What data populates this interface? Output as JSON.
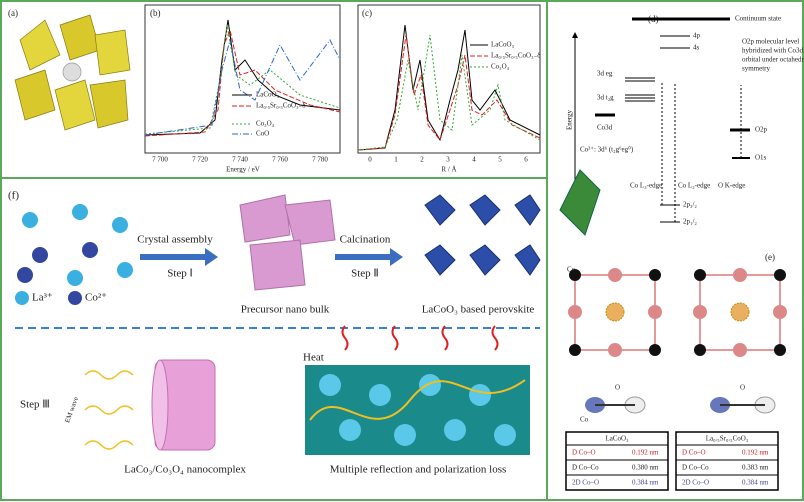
{
  "panel_a": {
    "label": "(a)"
  },
  "panel_b": {
    "label": "(b)",
    "legend": [
      "LaCoO₃",
      "La₀.₅Sr₀.₅CoO₃₋δ",
      "Co₃O₄",
      "CoO"
    ],
    "xticks": [
      "7 700",
      "7 720",
      "7 740",
      "7 760",
      "7 780"
    ],
    "xlabel": "Energy / eV"
  },
  "panel_c": {
    "label": "(c)",
    "legend": [
      "LaCoO₃",
      "La₀.₅Sr₀.₅CoO₃₋δ",
      "Co₃O₄"
    ],
    "xticks": [
      "0",
      "1",
      "2",
      "3",
      "4",
      "5",
      "6"
    ],
    "xlabel": "R / Å"
  },
  "panel_d": {
    "label": "(d)",
    "continuum": "Continuum state",
    "level_4p": "4p",
    "level_4s": "4s",
    "note": [
      "O2p molecular level",
      "hybridized with Co3d",
      "orbital under octahedral",
      "symmetry"
    ],
    "eg": "3d eg",
    "t2g": "3d t₂g",
    "co3d": "Co3d",
    "o2p": "O2p",
    "o1s": "O1s",
    "energy": "Energy",
    "config": "Co³⁺: 3d⁶ (t₂g⁶eg⁰)",
    "l3": "Co L₃-edge",
    "l2": "Co L₂-edge",
    "ok": "O K-edge",
    "p32": "2p₃/₂",
    "p12": "2p₁/₂"
  },
  "panel_e": {
    "label": "(e)",
    "co": "Co",
    "o": "O",
    "tables": [
      {
        "title": "LaCoO₃",
        "rows": [
          [
            "D Co–O",
            "0.192 nm"
          ],
          [
            "D Co–Co",
            "0.380 nm"
          ],
          [
            "2D Co–O",
            "0.384 nm"
          ]
        ]
      },
      {
        "title": "La₀.₅Sr₀.₅CoO₃",
        "rows": [
          [
            "D Co–O",
            "0.192 nm"
          ],
          [
            "D Co–Co",
            "0.383 nm"
          ],
          [
            "2D Co–O",
            "0.384 nm"
          ]
        ]
      }
    ]
  },
  "panel_f": {
    "label": "(f)",
    "step1_top": "Crystal assembly",
    "step1": "Step Ⅰ",
    "step2_top": "Calcination",
    "step2": "Step Ⅱ",
    "la": "La³⁺",
    "co": "Co²⁺",
    "precursor": "Precursor nano bulk",
    "perovskite": "LaCoO₃ based perovskite",
    "step3": "Step Ⅲ",
    "em": "EM wave",
    "heat": "Heat",
    "nanocomplex": "LaCo₃/Co₃O₄ nanocomplex",
    "loss": "Multiple reflection and polarization loss"
  }
}
